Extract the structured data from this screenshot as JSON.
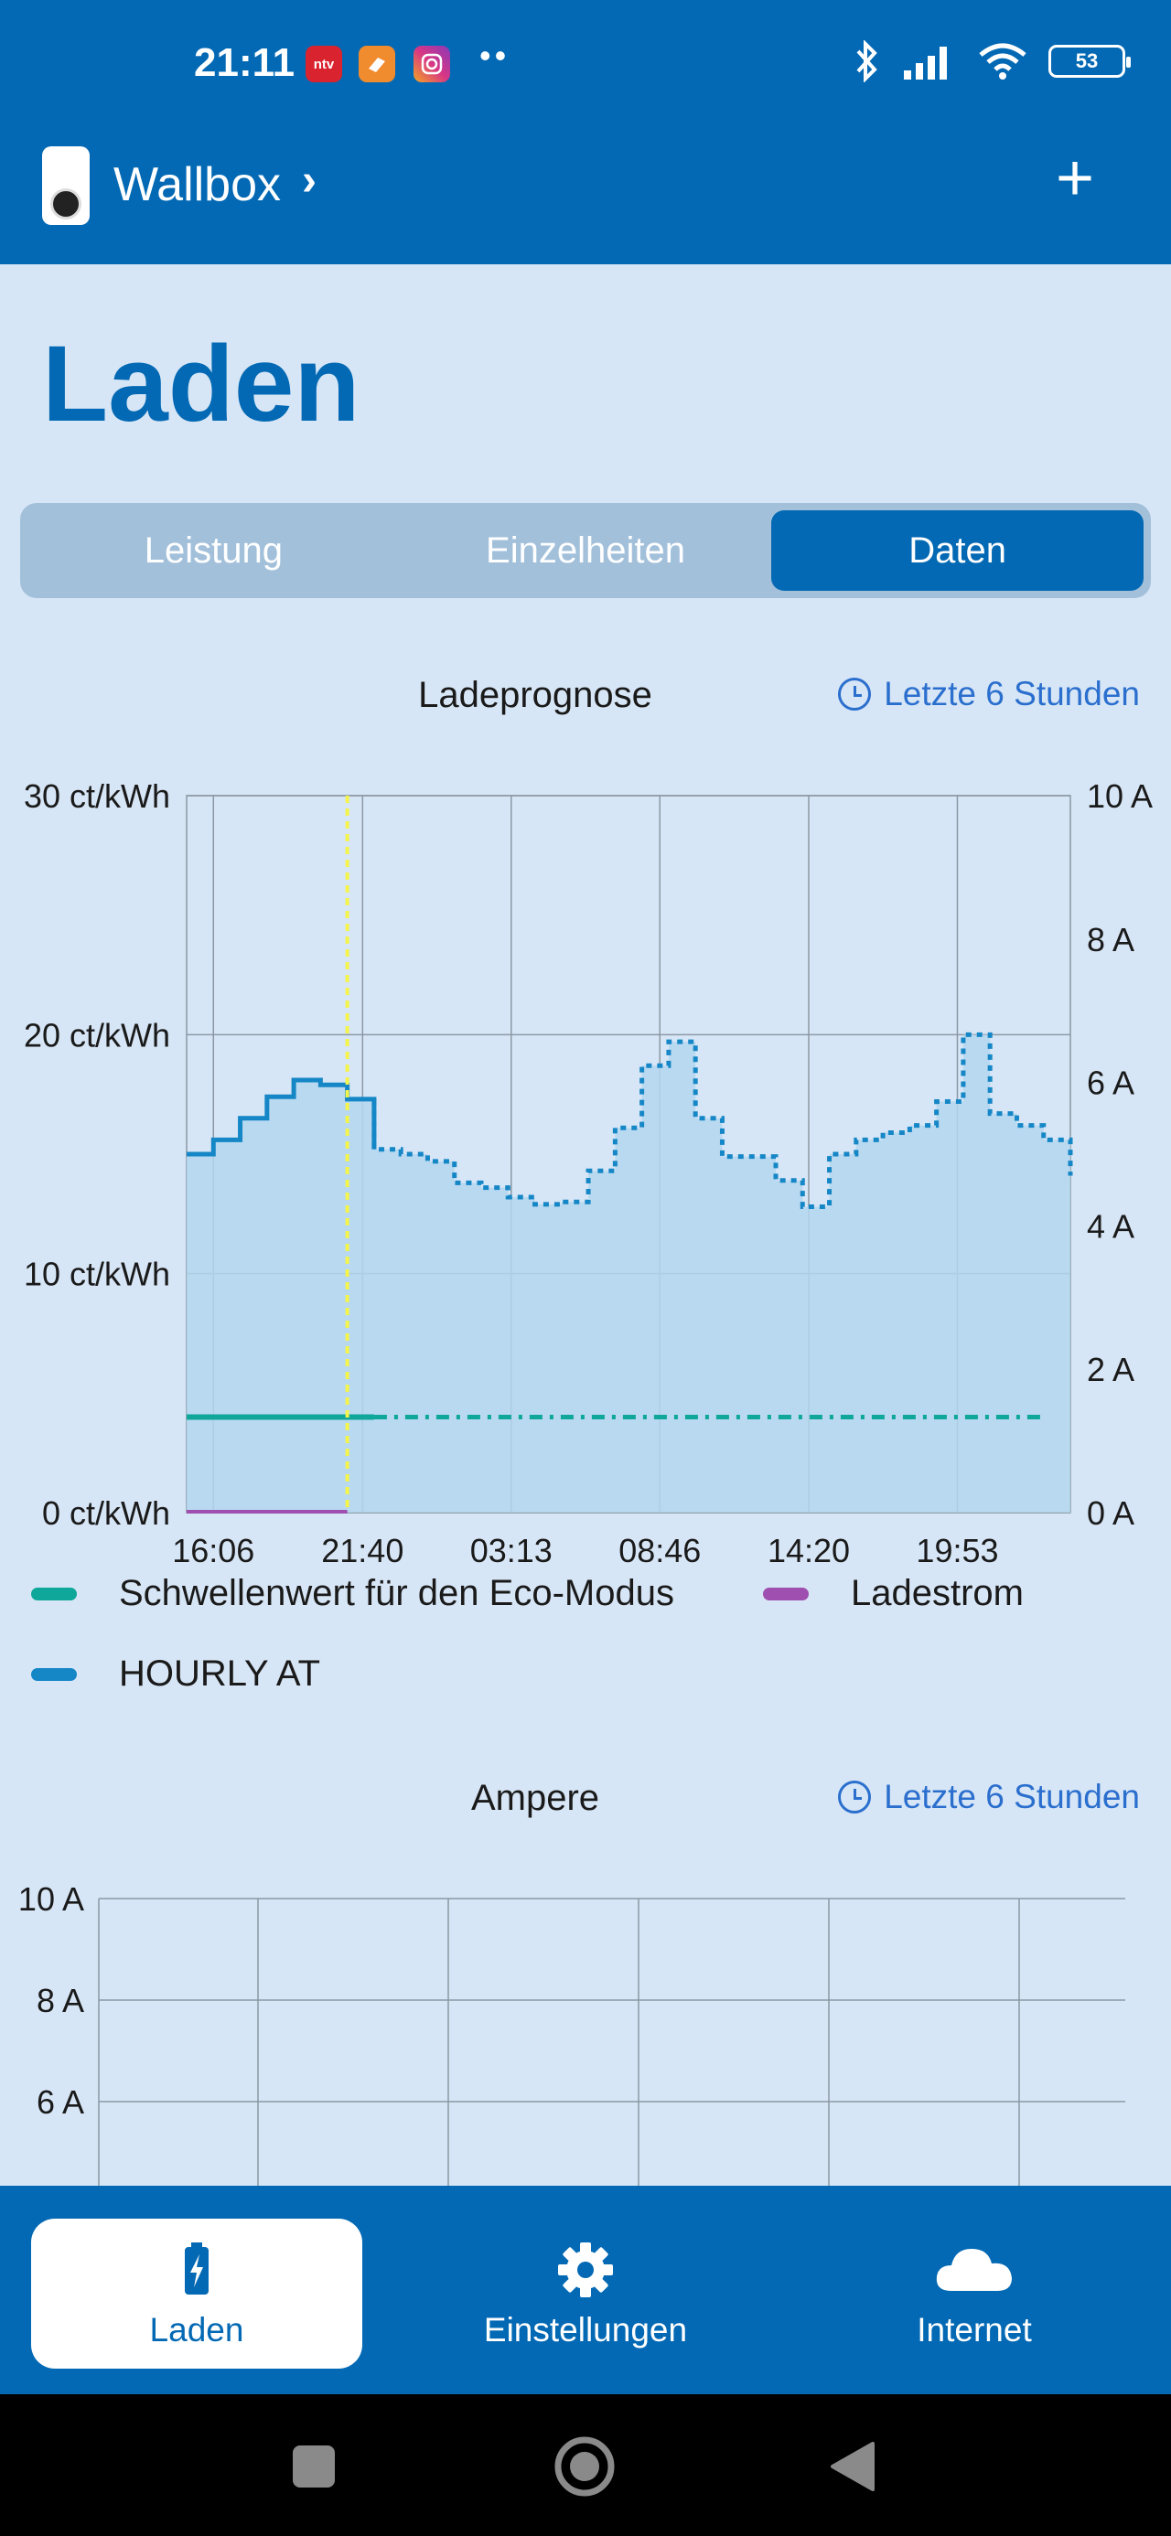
{
  "status_bar": {
    "time": "21:11",
    "apps": [
      {
        "icon": "ntv-app-icon",
        "label": "ntv",
        "color": "#d9232e"
      },
      {
        "icon": "shop-app-icon",
        "label": "",
        "color": "#f08b2e"
      },
      {
        "icon": "instagram-app-icon",
        "label": "",
        "color": "#d83685"
      }
    ],
    "more": "••",
    "battery": "53"
  },
  "app_bar": {
    "device_name": "Wallbox",
    "chevron": "›",
    "add_label": "+"
  },
  "page": {
    "title": "Laden"
  },
  "segments": [
    {
      "label": "Leistung",
      "active": false
    },
    {
      "label": "Einzelheiten",
      "active": false
    },
    {
      "label": "Daten",
      "active": true
    }
  ],
  "colors": {
    "brand": "#0369b4",
    "background": "#d7e6f6",
    "price_line": "#1586c6",
    "price_fill": "#b3d6ef",
    "eco_threshold": "#0ea79a",
    "charge_current": "#9e4fb0",
    "now_marker": "#f4f44a"
  },
  "chart_prognose": {
    "title": "Ladeprognose",
    "range_label": "Letzte 6 Stunden",
    "legend": [
      {
        "label": "Schwellenwert für den Eco-Modus",
        "color": "#0ea79a"
      },
      {
        "label": "Ladestrom",
        "color": "#9e4fb0"
      },
      {
        "label": "HOURLY AT",
        "color": "#1586c6"
      }
    ]
  },
  "chart_ampere": {
    "title": "Ampere",
    "range_label": "Letzte 6 Stunden"
  },
  "chart_data": [
    {
      "type": "line",
      "title": "Ladeprognose",
      "step": true,
      "y_left": {
        "ylim": [
          0,
          30
        ],
        "ticks": [
          "30 ct/kWh",
          "20 ct/kWh",
          "10 ct/kWh",
          "0 ct/kWh"
        ],
        "tick_values": [
          30,
          20,
          10,
          0
        ]
      },
      "y_right": {
        "ylim": [
          0,
          10
        ],
        "ticks": [
          "10 A",
          "8 A",
          "6 A",
          "4 A",
          "2 A",
          "0 A"
        ],
        "tick_values": [
          10,
          8,
          6,
          4,
          2,
          0
        ]
      },
      "x_ticks": [
        "16:06",
        "21:40",
        "03:13",
        "08:46",
        "14:20",
        "19:53"
      ],
      "x_tick_hours": [
        1,
        6.57,
        12.12,
        17.67,
        23.23,
        28.78
      ],
      "x_range_hours": [
        0,
        33
      ],
      "now_hours": 6.0,
      "grid": true,
      "series": [
        {
          "name": "HOURLY AT",
          "axis": "left",
          "x_hours": [
            0,
            1,
            2,
            3,
            4,
            5,
            6,
            7,
            8,
            9,
            10,
            11,
            12,
            13,
            14,
            15,
            16,
            17,
            18,
            19,
            20,
            21,
            22,
            23,
            24,
            25,
            26,
            27,
            28,
            29,
            30,
            31,
            32
          ],
          "values": [
            15.0,
            15.6,
            16.5,
            17.4,
            18.1,
            17.9,
            17.3,
            15.2,
            15.0,
            14.7,
            13.8,
            13.6,
            13.2,
            12.9,
            13.0,
            14.3,
            16.1,
            18.7,
            19.7,
            16.5,
            14.9,
            14.9,
            13.9,
            12.8,
            15.0,
            15.6,
            15.9,
            16.2,
            17.2,
            20.0,
            16.7,
            16.2,
            15.6
          ],
          "x_end_hours": 33,
          "last_value": 14.1,
          "solid_until_hours": 7
        },
        {
          "name": "Schwellenwert für den Eco-Modus",
          "axis": "left",
          "x_hours": [
            0,
            32
          ],
          "values": [
            4,
            4
          ],
          "solid_until_hours": 7
        },
        {
          "name": "Ladestrom",
          "axis": "right",
          "x_hours": [
            0,
            6
          ],
          "values": [
            0,
            0
          ]
        }
      ]
    },
    {
      "type": "line",
      "title": "Ampere",
      "y_left": {
        "ylim": [
          0,
          10
        ],
        "ticks": [
          "10 A",
          "8 A",
          "6 A"
        ],
        "tick_values": [
          10,
          8,
          6
        ]
      },
      "grid": true,
      "series": []
    }
  ],
  "bottom_nav": [
    {
      "label": "Laden",
      "icon": "battery-charging-icon",
      "active": true
    },
    {
      "label": "Einstellungen",
      "icon": "gear-icon",
      "active": false
    },
    {
      "label": "Internet",
      "icon": "cloud-icon",
      "active": false
    }
  ],
  "system_nav": [
    {
      "icon": "recents-square-icon"
    },
    {
      "icon": "home-circle-icon"
    },
    {
      "icon": "back-triangle-icon"
    }
  ]
}
